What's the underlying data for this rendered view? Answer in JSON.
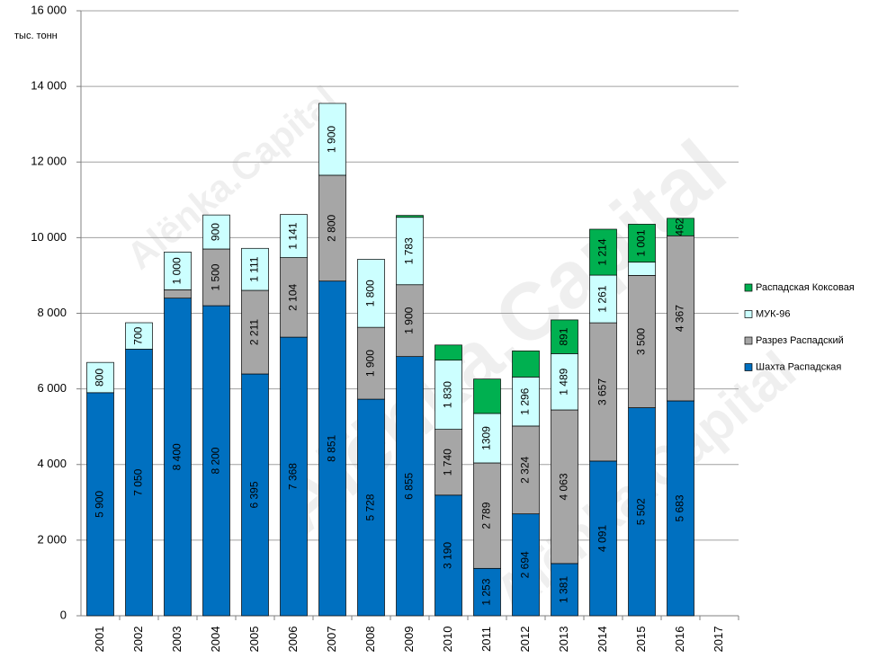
{
  "chart_data": {
    "type": "stacked-bar",
    "y_label": "тыс. тонн",
    "watermark": "Alёnka.Capital",
    "categories": [
      "2001",
      "2002",
      "2003",
      "2004",
      "2005",
      "2006",
      "2007",
      "2008",
      "2009",
      "2010",
      "2011",
      "2012",
      "2013",
      "2014",
      "2015",
      "2016",
      "2017"
    ],
    "ylim": [
      0,
      16000
    ],
    "yticks": [
      0,
      {
        "value": 2000,
        "label": "2 000"
      },
      {
        "value": 4000,
        "label": "4 000"
      },
      {
        "value": 6000,
        "label": "6 000"
      },
      {
        "value": 8000,
        "label": "8 000"
      },
      {
        "value": 10000,
        "label": "10 000"
      },
      {
        "value": 12000,
        "label": "12 000"
      },
      {
        "value": 14000,
        "label": "14 000"
      },
      {
        "value": 16000,
        "label": "16 000"
      }
    ],
    "grid": true,
    "legend": "right",
    "series": [
      {
        "name": "Шахта Распадская",
        "color": "#0070c0",
        "values": [
          5900,
          7050,
          8400,
          8200,
          6395,
          7368,
          8851,
          5728,
          6855,
          3190,
          1253,
          2694,
          1381,
          4091,
          5502,
          5683,
          null
        ],
        "value_labels": [
          "5 900",
          "7 050",
          "8 400",
          "8 200",
          "6 395",
          "7 368",
          "8 851",
          "5 728",
          "6 855",
          "3 190",
          "1 253",
          "2 694",
          "1 381",
          "4 091",
          "5 502",
          "5 683",
          null
        ]
      },
      {
        "name": "Разрез Распадский",
        "color": "#a6a6a6",
        "values": [
          null,
          null,
          220,
          1500,
          2211,
          2104,
          2800,
          1900,
          1900,
          1740,
          2789,
          2324,
          4063,
          3657,
          3500,
          4367,
          null
        ],
        "value_labels": [
          null,
          null,
          null,
          "1 500",
          "2 211",
          "2 104",
          "2 800",
          "1 900",
          "1 900",
          "1 740",
          "2 789",
          "2 324",
          "4 063",
          "3 657",
          "3 500",
          "4 367",
          null
        ]
      },
      {
        "name": "МУК-96",
        "color": "#ccffff",
        "values": [
          800,
          700,
          1000,
          900,
          1111,
          1141,
          1900,
          1800,
          1783,
          1830,
          1309,
          1296,
          1489,
          1261,
          352,
          null,
          null
        ],
        "value_labels": [
          "800",
          "700",
          "1 000",
          "900",
          "1 111",
          "1 141",
          "1 900",
          "1 800",
          "1 783",
          "1 830",
          "1309",
          "1 296",
          "1 489",
          "1 261",
          null,
          null,
          null
        ]
      },
      {
        "name": "Распадская Коксовая",
        "color": "#00b050",
        "values": [
          null,
          null,
          null,
          null,
          null,
          null,
          null,
          null,
          50,
          400,
          909,
          690,
          891,
          1214,
          1001,
          462,
          null
        ],
        "value_labels": [
          null,
          null,
          null,
          null,
          null,
          null,
          null,
          null,
          null,
          null,
          null,
          null,
          "891",
          "1 214",
          "1 001",
          "462",
          null
        ]
      }
    ]
  }
}
